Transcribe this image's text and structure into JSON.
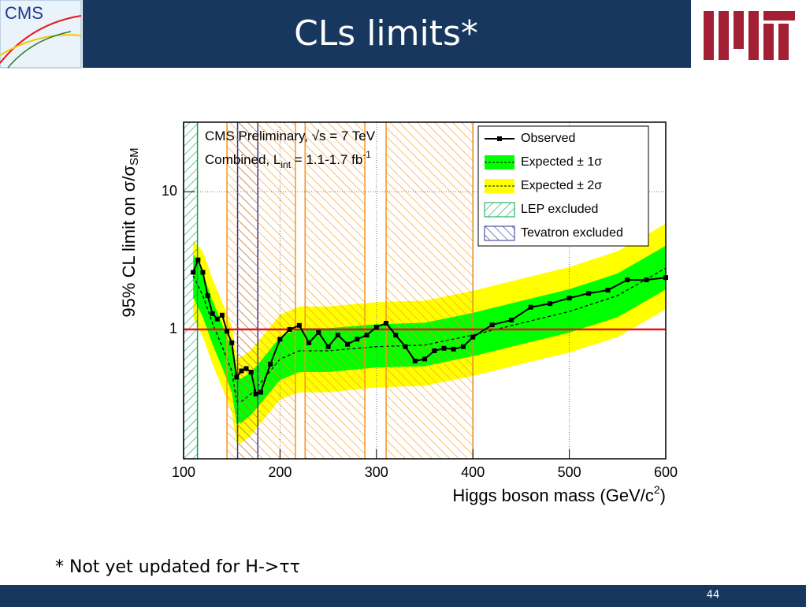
{
  "header": {
    "title": "CLs limits*",
    "cms_logo": "CMS"
  },
  "footer": {
    "note": "* Not yet updated for H->ττ",
    "page": "44"
  },
  "chart_data": {
    "type": "limit",
    "annotations": [
      [
        "CMS Preliminary, √s = 7 TeV"
      ],
      [
        "Combined, L",
        "int",
        " = 1.1-1.7 fb",
        "-1"
      ]
    ],
    "ylabel": [
      "95% CL limit on σ/σ",
      "SM"
    ],
    "xlabel": [
      "Higgs boson mass (GeV/c",
      "2",
      ")"
    ],
    "xlim": [
      100,
      600
    ],
    "xticks": [
      100,
      200,
      300,
      400,
      500,
      600
    ],
    "ylim": [
      0.115,
      32
    ],
    "yticks": [
      1,
      10
    ],
    "log_y": true,
    "grid": true,
    "legend": "upper right",
    "reference_line": {
      "value": 1,
      "color": "#e8141b"
    },
    "observed": {
      "name": "Observed",
      "color": "#000000",
      "x": [
        110,
        115,
        120,
        125,
        130,
        135,
        140,
        145,
        150,
        155,
        160,
        165,
        170,
        175,
        180,
        190,
        200,
        210,
        220,
        230,
        240,
        250,
        260,
        270,
        280,
        290,
        300,
        310,
        320,
        330,
        340,
        350,
        360,
        370,
        380,
        390,
        400,
        420,
        440,
        460,
        480,
        500,
        520,
        540,
        560,
        580,
        600
      ],
      "values": [
        2.6,
        3.2,
        2.6,
        1.76,
        1.3,
        1.19,
        1.27,
        0.97,
        0.8,
        0.45,
        0.5,
        0.52,
        0.49,
        0.34,
        0.35,
        0.56,
        0.85,
        1.0,
        1.07,
        0.8,
        0.95,
        0.75,
        0.91,
        0.78,
        0.85,
        0.91,
        1.04,
        1.11,
        0.91,
        0.75,
        0.59,
        0.61,
        0.7,
        0.73,
        0.72,
        0.75,
        0.88,
        1.08,
        1.17,
        1.45,
        1.54,
        1.69,
        1.83,
        1.93,
        2.29,
        2.29,
        2.38
      ]
    },
    "expected": {
      "x": [
        110,
        120,
        130,
        140,
        150,
        155,
        160,
        170,
        180,
        200,
        220,
        250,
        300,
        350,
        400,
        450,
        500,
        550,
        600
      ],
      "median": [
        2.45,
        1.76,
        1.11,
        0.75,
        0.5,
        0.3,
        0.3,
        0.34,
        0.41,
        0.61,
        0.7,
        0.7,
        0.75,
        0.77,
        0.91,
        1.11,
        1.35,
        1.76,
        2.79
      ],
      "bands": [
        {
          "name": "Expected ± 2σ",
          "color": "#ffff00",
          "lo": [
            1.23,
            0.88,
            0.56,
            0.38,
            0.25,
            0.15,
            0.15,
            0.17,
            0.21,
            0.31,
            0.35,
            0.35,
            0.38,
            0.39,
            0.46,
            0.56,
            0.68,
            0.88,
            1.4
          ],
          "hi": [
            4.4,
            3.7,
            2.33,
            1.58,
            1.05,
            0.63,
            0.63,
            0.71,
            0.86,
            1.28,
            1.47,
            1.47,
            1.58,
            1.62,
            1.91,
            2.33,
            2.84,
            3.7,
            5.86
          ]
        },
        {
          "name": "Expected ± 1σ",
          "color": "#00ff00",
          "lo": [
            1.72,
            1.23,
            0.78,
            0.53,
            0.35,
            0.21,
            0.21,
            0.24,
            0.29,
            0.43,
            0.49,
            0.49,
            0.53,
            0.54,
            0.64,
            0.78,
            0.95,
            1.23,
            1.95
          ],
          "hi": [
            3.55,
            2.55,
            1.61,
            1.09,
            0.73,
            0.44,
            0.44,
            0.49,
            0.59,
            0.88,
            1.02,
            1.02,
            1.09,
            1.12,
            1.32,
            1.61,
            1.96,
            2.55,
            4.05
          ]
        }
      ]
    },
    "regions": [
      {
        "name": "LEP excluded",
        "color": "#00a651",
        "range": [
          100,
          114.4
        ]
      },
      {
        "name": "Tevatron excluded",
        "color": "#2e3192",
        "range": [
          156,
          177
        ]
      },
      {
        "color": "#f7941d",
        "range": [
          145,
          216
        ]
      },
      {
        "color": "#f7941d",
        "range": [
          226,
          288
        ]
      },
      {
        "color": "#f7941d",
        "range": [
          310,
          400
        ]
      }
    ]
  }
}
